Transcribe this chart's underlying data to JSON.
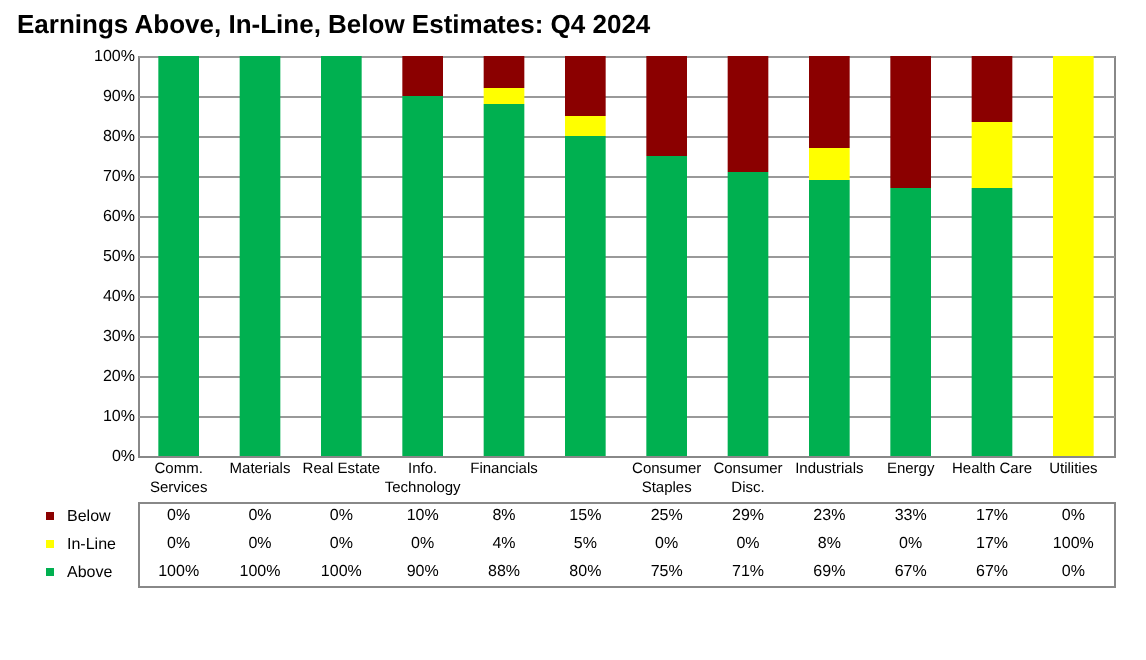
{
  "chart_data": {
    "type": "bar",
    "title": "Earnings Above, In-Line, Below Estimates: Q4 2024",
    "stacked": true,
    "grid": "y",
    "legend": "bottom left",
    "categories": [
      "Comm. Services",
      "Materials",
      "Real Estate",
      "Info. Technology",
      "Financials",
      null,
      "Consumer Staples",
      "Consumer Disc.",
      "Industrials",
      "Energy",
      "Health Care",
      "Utilities"
    ],
    "ylim": [
      0,
      100
    ],
    "yticks": [
      {
        "value": 0,
        "label": "0%"
      },
      {
        "value": 10,
        "label": "10%"
      },
      {
        "value": 20,
        "label": "20%"
      },
      {
        "value": 30,
        "label": "30%"
      },
      {
        "value": 40,
        "label": "40%"
      },
      {
        "value": 50,
        "label": "50%"
      },
      {
        "value": 60,
        "label": "60%"
      },
      {
        "value": 70,
        "label": "70%"
      },
      {
        "value": 80,
        "label": "80%"
      },
      {
        "value": 90,
        "label": "90%"
      },
      {
        "value": 100,
        "label": "100%"
      }
    ],
    "series": [
      {
        "name": "Above",
        "color": "#00b050",
        "values": [
          100,
          100,
          100,
          90,
          88,
          80,
          75,
          71,
          69,
          67,
          67,
          0
        ],
        "value_labels": [
          "100%",
          "100%",
          "100%",
          "90%",
          "88%",
          "80%",
          "75%",
          "71%",
          "69%",
          "67%",
          "67%",
          "0%"
        ]
      },
      {
        "name": "In-Line",
        "color": "#ffff00",
        "values": [
          0,
          0,
          0,
          0,
          4,
          5,
          0,
          0,
          8,
          0,
          16.5,
          100
        ],
        "value_labels": [
          "0%",
          "0%",
          "0%",
          "0%",
          "4%",
          "5%",
          "0%",
          "0%",
          "8%",
          "0%",
          "17%",
          "100%"
        ]
      },
      {
        "name": "Below",
        "color": "#8b0000",
        "values": [
          0,
          0,
          0,
          10,
          8,
          15,
          25,
          29,
          23,
          33,
          16.5,
          0
        ],
        "value_labels": [
          "0%",
          "0%",
          "0%",
          "10%",
          "8%",
          "15%",
          "25%",
          "29%",
          "23%",
          "33%",
          "17%",
          "0%"
        ]
      }
    ]
  }
}
